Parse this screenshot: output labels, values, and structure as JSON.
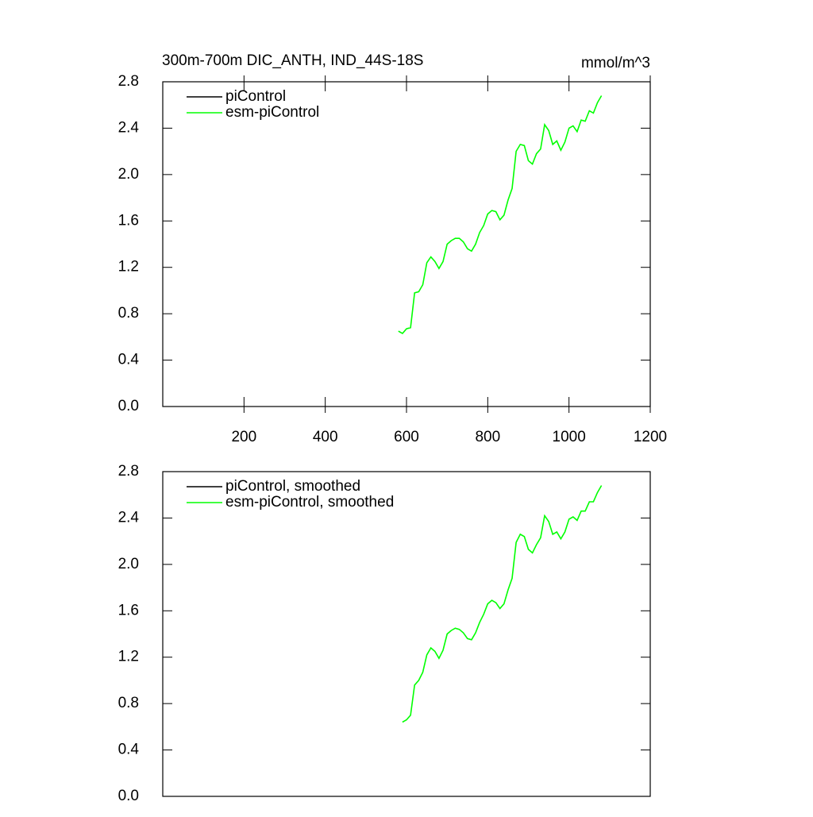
{
  "chart_data": [
    {
      "type": "line",
      "title": "300m-700m DIC_ANTH, IND_44S-18S",
      "subtitle": "mmol/m^3",
      "x": [
        580,
        590,
        600,
        610,
        620,
        630,
        640,
        650,
        660,
        670,
        680,
        690,
        700,
        710,
        720,
        730,
        740,
        750,
        760,
        770,
        780,
        790,
        800,
        810,
        820,
        830,
        840,
        850,
        860,
        870,
        880,
        890,
        900,
        910,
        920,
        930,
        940,
        950,
        960,
        970,
        980,
        990,
        1000,
        1010,
        1020,
        1030,
        1040,
        1050,
        1060,
        1070,
        1080
      ],
      "series": [
        {
          "name": "piControl",
          "color": "#000000",
          "values": [
            null,
            null,
            null,
            null,
            null,
            null,
            null,
            null,
            null,
            null,
            null,
            null,
            null,
            null,
            null,
            null,
            null,
            null,
            null,
            null,
            null,
            null,
            null,
            null,
            null,
            null,
            null,
            null,
            null,
            null,
            null,
            null,
            null,
            null,
            null,
            null,
            null,
            null,
            null,
            null,
            null,
            null,
            null,
            null,
            null,
            null,
            null,
            null,
            null,
            null,
            null
          ]
        },
        {
          "name": "esm-piControl",
          "color": "#00ff00",
          "values": [
            0.65,
            0.63,
            0.67,
            0.68,
            0.98,
            0.99,
            1.05,
            1.24,
            1.29,
            1.25,
            1.19,
            1.25,
            1.4,
            1.43,
            1.45,
            1.45,
            1.42,
            1.36,
            1.34,
            1.4,
            1.5,
            1.56,
            1.66,
            1.69,
            1.68,
            1.61,
            1.65,
            1.78,
            1.88,
            2.2,
            2.26,
            2.25,
            2.12,
            2.09,
            2.18,
            2.22,
            2.43,
            2.38,
            2.26,
            2.29,
            2.21,
            2.28,
            2.4,
            2.42,
            2.37,
            2.47,
            2.46,
            2.55,
            2.53,
            2.62,
            2.68
          ]
        }
      ],
      "xlim": [
        0,
        1200
      ],
      "xticks": [
        200,
        400,
        600,
        800,
        1000,
        1200
      ],
      "ylim": [
        0,
        2.8
      ],
      "yticks": [
        {
          "value": 0,
          "label": "0.0"
        },
        0.4,
        0.8,
        1.2,
        1.6,
        {
          "value": 2,
          "label": "2.0"
        },
        2.4,
        2.8
      ]
    },
    {
      "type": "line",
      "x": [
        590,
        600,
        610,
        620,
        630,
        640,
        650,
        660,
        670,
        680,
        690,
        700,
        710,
        720,
        730,
        740,
        750,
        760,
        770,
        780,
        790,
        800,
        810,
        820,
        830,
        840,
        850,
        860,
        870,
        880,
        890,
        900,
        910,
        920,
        930,
        940,
        950,
        960,
        970,
        980,
        990,
        1000,
        1010,
        1020,
        1030,
        1040,
        1050,
        1060,
        1070,
        1080
      ],
      "series": [
        {
          "name": "piControl, smoothed",
          "color": "#000000",
          "values": [
            null,
            null,
            null,
            null,
            null,
            null,
            null,
            null,
            null,
            null,
            null,
            null,
            null,
            null,
            null,
            null,
            null,
            null,
            null,
            null,
            null,
            null,
            null,
            null,
            null,
            null,
            null,
            null,
            null,
            null,
            null,
            null,
            null,
            null,
            null,
            null,
            null,
            null,
            null,
            null,
            null,
            null,
            null,
            null,
            null,
            null,
            null,
            null,
            null,
            null
          ]
        },
        {
          "name": "esm-piControl, smoothed",
          "color": "#00ff00",
          "values": [
            0.64,
            0.66,
            0.7,
            0.96,
            1.0,
            1.07,
            1.22,
            1.28,
            1.25,
            1.19,
            1.26,
            1.4,
            1.43,
            1.45,
            1.44,
            1.41,
            1.36,
            1.35,
            1.41,
            1.5,
            1.57,
            1.66,
            1.69,
            1.67,
            1.62,
            1.66,
            1.78,
            1.88,
            2.19,
            2.26,
            2.24,
            2.13,
            2.1,
            2.17,
            2.23,
            2.42,
            2.37,
            2.26,
            2.28,
            2.22,
            2.28,
            2.39,
            2.41,
            2.38,
            2.46,
            2.46,
            2.54,
            2.54,
            2.62,
            2.68
          ]
        }
      ],
      "xlim": [
        0,
        1200
      ],
      "ylim": [
        0,
        2.8
      ],
      "yticks": [
        {
          "value": 0,
          "label": "0.0"
        },
        0.4,
        0.8,
        1.2,
        1.6,
        {
          "value": 2,
          "label": "2.0"
        },
        2.4,
        2.8
      ]
    }
  ]
}
